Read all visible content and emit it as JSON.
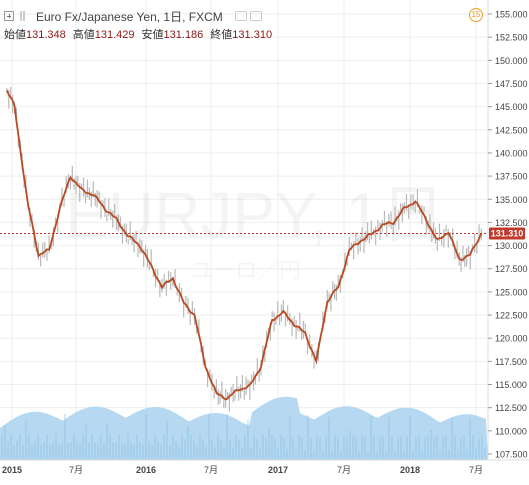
{
  "header": {
    "title": "Euro Fx/Japanese Yen, 1日, FXCM",
    "clock_icon_text": "15",
    "ohlc": [
      {
        "label": "始値",
        "value": "131.348"
      },
      {
        "label": "高値",
        "value": "131.429"
      },
      {
        "label": "安値",
        "value": "131.186"
      },
      {
        "label": "終値",
        "value": "131.310"
      }
    ]
  },
  "watermark": {
    "symbol": "EURJPY, 1日",
    "description": "ユーロ／円"
  },
  "colors": {
    "price_line": "#b84a22",
    "candles": "#b9b9b9",
    "volume_fill": "#a9d2ee",
    "last_price_bg": "#c0392b",
    "grid": "#eeeeee"
  },
  "chart_data": {
    "type": "line",
    "title": "Euro Fx/Japanese Yen, 1日, FXCM",
    "x_labels": [
      "2015",
      "7月",
      "2016",
      "7月",
      "2017",
      "7月",
      "2018",
      "7月"
    ],
    "y_ticks": [
      "155.000",
      "152.500",
      "150.000",
      "147.500",
      "145.000",
      "142.500",
      "140.000",
      "137.500",
      "135.000",
      "132.500",
      "130.000",
      "127.500",
      "125.000",
      "122.500",
      "120.000",
      "117.500",
      "115.000",
      "112.500",
      "110.000",
      "107.500"
    ],
    "ylim": [
      107.5,
      155.0
    ],
    "last_price": 131.31,
    "last_price_label": "131.310",
    "series": [
      {
        "name": "EURJPY",
        "x": [
          "2015-01",
          "2015-01",
          "2015-02",
          "2015-03",
          "2015-04",
          "2015-05",
          "2015-06",
          "2015-07",
          "2015-08",
          "2015-09",
          "2015-10",
          "2015-11",
          "2015-12",
          "2016-01",
          "2016-02",
          "2016-03",
          "2016-04",
          "2016-05",
          "2016-06",
          "2016-07",
          "2016-08",
          "2016-09",
          "2016-10",
          "2016-11",
          "2016-12",
          "2017-01",
          "2017-02",
          "2017-03",
          "2017-04",
          "2017-05",
          "2017-06",
          "2017-07",
          "2017-08",
          "2017-09",
          "2017-10",
          "2017-11",
          "2017-12",
          "2018-01",
          "2018-02",
          "2018-03",
          "2018-04",
          "2018-05",
          "2018-06",
          "2018-07"
        ],
        "values": [
          146.8,
          145.0,
          134.5,
          129.0,
          129.5,
          134.0,
          137.5,
          136.0,
          135.5,
          134.0,
          132.8,
          131.0,
          130.0,
          127.8,
          125.5,
          126.5,
          123.8,
          122.5,
          117.0,
          114.0,
          113.5,
          114.5,
          114.8,
          117.0,
          122.0,
          122.8,
          121.5,
          120.5,
          117.5,
          124.0,
          125.5,
          129.5,
          130.5,
          131.2,
          132.2,
          132.5,
          134.0,
          134.8,
          132.8,
          130.5,
          131.5,
          128.5,
          129.0,
          131.3
        ]
      }
    ]
  }
}
